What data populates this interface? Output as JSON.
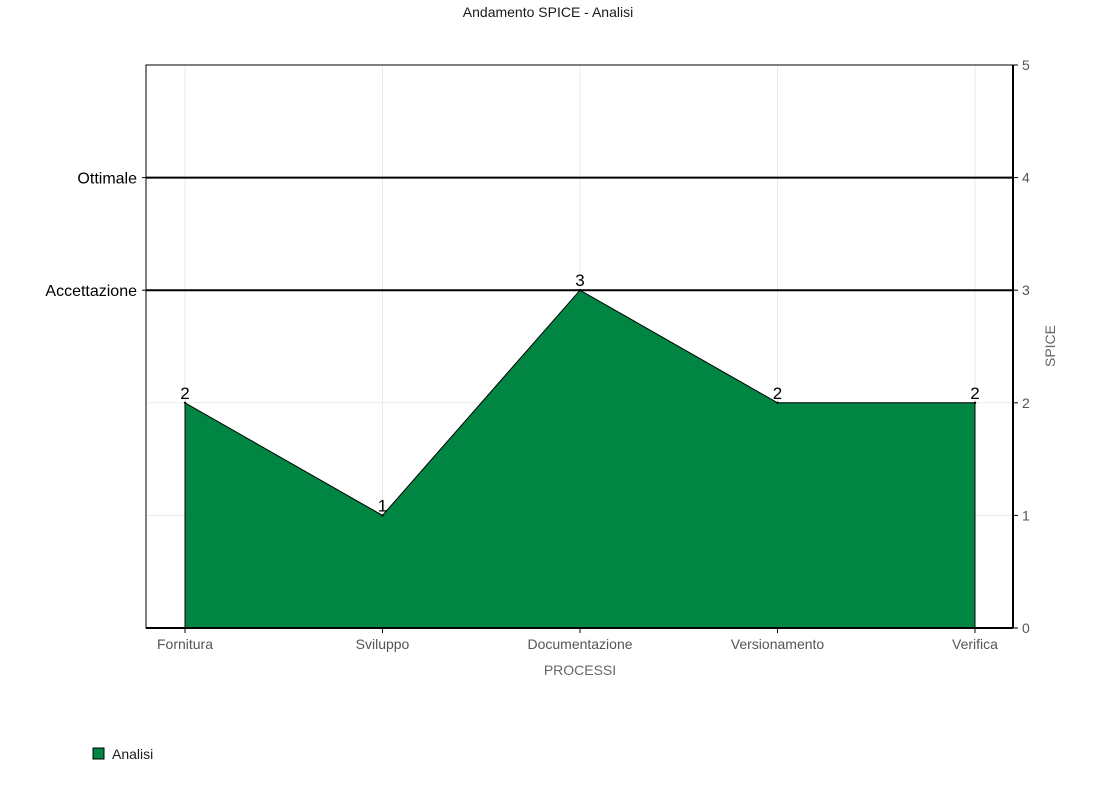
{
  "chart_data": {
    "type": "area",
    "title": "Andamento SPICE - Analisi",
    "xlabel": "PROCESSI",
    "ylabel": "SPICE",
    "categories": [
      "Fornitura",
      "Sviluppo",
      "Documentazione",
      "Versionamento",
      "Verifica"
    ],
    "series": [
      {
        "name": "Analisi",
        "values": [
          2,
          1,
          3,
          2,
          2
        ],
        "color": "#008542"
      }
    ],
    "ylim": [
      0,
      5
    ],
    "yticks": [
      "0",
      "1",
      "2",
      "3",
      "4",
      "5"
    ],
    "y_axis_side": "right",
    "grid": true,
    "legend_position": "bottom-left",
    "reference_lines": [
      {
        "label": "Ottimale",
        "value": 4
      },
      {
        "label": "Accettazione",
        "value": 3
      }
    ]
  }
}
